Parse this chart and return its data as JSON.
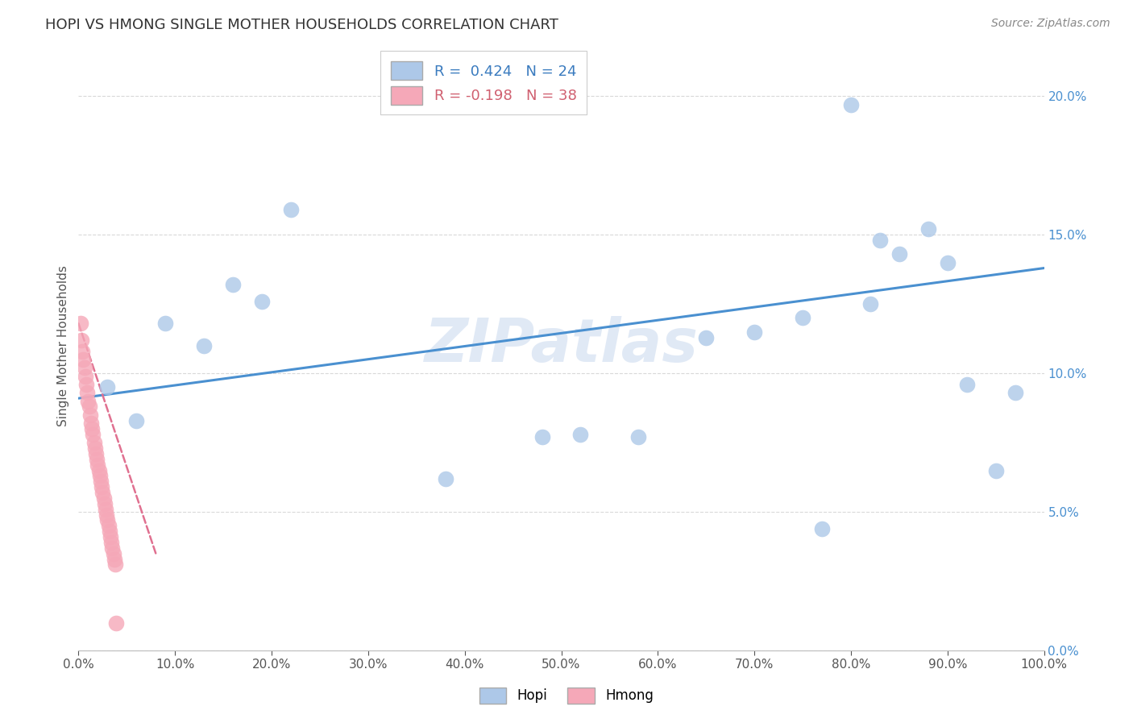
{
  "title": "HOPI VS HMONG SINGLE MOTHER HOUSEHOLDS CORRELATION CHART",
  "source": "Source: ZipAtlas.com",
  "ylabel": "Single Mother Households",
  "hopi_R": 0.424,
  "hopi_N": 24,
  "hmong_R": -0.198,
  "hmong_N": 38,
  "hopi_color": "#adc8e8",
  "hmong_color": "#f5a8b8",
  "hopi_line_color": "#4a90d0",
  "hmong_line_color": "#e07090",
  "watermark": "ZIPatlas",
  "xlim": [
    0,
    1.0
  ],
  "ylim": [
    0,
    0.22
  ],
  "x_ticks": [
    0.0,
    0.1,
    0.2,
    0.3,
    0.4,
    0.5,
    0.6,
    0.7,
    0.8,
    0.9,
    1.0
  ],
  "y_ticks": [
    0.0,
    0.05,
    0.1,
    0.15,
    0.2
  ],
  "hopi_x": [
    0.03,
    0.06,
    0.09,
    0.13,
    0.22,
    0.48,
    0.52,
    0.65,
    0.77,
    0.8,
    0.83,
    0.85,
    0.88,
    0.9,
    0.92,
    0.95,
    0.97,
    0.16,
    0.19,
    0.38,
    0.58,
    0.7,
    0.75,
    0.82
  ],
  "hopi_y": [
    0.095,
    0.083,
    0.118,
    0.11,
    0.159,
    0.077,
    0.078,
    0.113,
    0.044,
    0.197,
    0.148,
    0.143,
    0.152,
    0.14,
    0.096,
    0.065,
    0.093,
    0.132,
    0.126,
    0.062,
    0.077,
    0.115,
    0.12,
    0.125
  ],
  "hmong_x": [
    0.002,
    0.003,
    0.004,
    0.005,
    0.006,
    0.007,
    0.008,
    0.009,
    0.01,
    0.011,
    0.012,
    0.013,
    0.014,
    0.015,
    0.016,
    0.017,
    0.018,
    0.019,
    0.02,
    0.021,
    0.022,
    0.023,
    0.024,
    0.025,
    0.026,
    0.027,
    0.028,
    0.029,
    0.03,
    0.031,
    0.032,
    0.033,
    0.034,
    0.035,
    0.036,
    0.037,
    0.038,
    0.039
  ],
  "hmong_y": [
    0.118,
    0.112,
    0.108,
    0.105,
    0.102,
    0.099,
    0.096,
    0.093,
    0.09,
    0.088,
    0.085,
    0.082,
    0.08,
    0.078,
    0.075,
    0.073,
    0.071,
    0.069,
    0.067,
    0.065,
    0.063,
    0.061,
    0.059,
    0.057,
    0.055,
    0.053,
    0.051,
    0.049,
    0.047,
    0.045,
    0.043,
    0.041,
    0.039,
    0.037,
    0.035,
    0.033,
    0.031,
    0.01
  ],
  "hopi_line_x0": 0.0,
  "hopi_line_y0": 0.091,
  "hopi_line_x1": 1.0,
  "hopi_line_y1": 0.138,
  "hmong_line_x0": 0.0,
  "hmong_line_y0": 0.118,
  "hmong_line_x1": 0.08,
  "hmong_line_y1": 0.035
}
